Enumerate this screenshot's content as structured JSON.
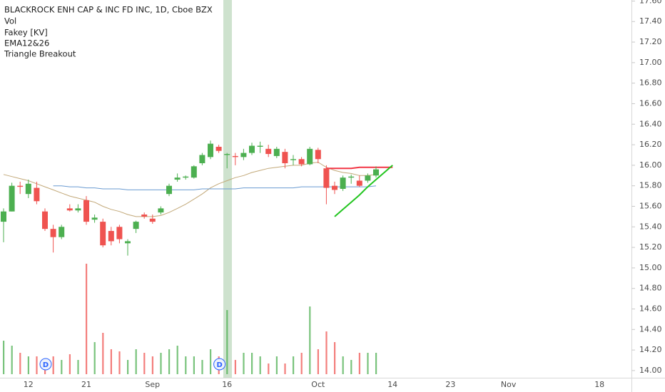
{
  "chart_data": {
    "type": "candlestick",
    "title": "BLACKROCK ENH CAP & INC FD INC, 1D, Cboe BZX",
    "indicators": [
      "Vol",
      "Fakey [KV]",
      "EMA12&26",
      "Triangle Breakout"
    ],
    "categories": [
      null,
      null,
      null,
      "12",
      null,
      null,
      null,
      null,
      null,
      null,
      "21",
      null,
      null,
      null,
      null,
      null,
      null,
      null,
      "Sep",
      null,
      null,
      null,
      null,
      null,
      null,
      null,
      null,
      "16",
      null,
      null,
      null,
      null,
      null,
      null,
      null,
      null,
      null,
      null,
      "Oct",
      null,
      null,
      null,
      null,
      null,
      null,
      null,
      null,
      "14",
      null,
      null,
      null,
      null,
      null,
      null,
      "23",
      null,
      null,
      null,
      null,
      null,
      null,
      "Nov",
      null,
      null,
      null,
      null,
      null,
      null,
      null,
      null,
      null,
      null,
      "18",
      null,
      null
    ],
    "open": [
      15.45,
      15.55,
      15.8,
      15.72,
      15.78,
      15.55,
      15.38,
      15.3,
      15.58,
      15.56,
      15.66,
      15.47,
      15.45,
      15.36,
      15.4,
      15.24,
      15.38,
      15.52,
      15.48,
      15.54,
      15.72,
      15.86,
      15.88,
      15.88,
      16.02,
      16.08,
      16.18,
      16.1,
      16.09,
      16.08,
      16.12,
      16.18,
      16.16,
      16.09,
      16.13,
      16.05,
      16.06,
      16.01,
      16.15,
      15.97,
      15.8,
      15.77,
      15.88,
      15.85,
      15.85,
      15.9,
      null,
      null,
      null,
      null,
      null,
      null,
      null,
      null,
      null,
      null,
      null,
      null,
      null,
      null,
      null,
      null,
      null,
      null,
      null,
      null,
      null,
      null,
      null,
      null,
      null,
      null,
      null,
      null,
      null
    ],
    "high": [
      15.58,
      15.83,
      15.84,
      15.86,
      15.84,
      15.58,
      15.42,
      15.42,
      15.62,
      15.62,
      15.7,
      15.52,
      15.48,
      15.4,
      15.42,
      15.28,
      15.46,
      15.54,
      15.52,
      15.6,
      15.82,
      15.92,
      15.9,
      16.0,
      16.12,
      16.24,
      16.2,
      16.12,
      16.12,
      16.16,
      16.22,
      16.23,
      16.2,
      16.18,
      16.16,
      16.1,
      16.08,
      16.18,
      16.17,
      16.0,
      15.84,
      15.9,
      15.91,
      15.9,
      15.92,
      15.99,
      null,
      null,
      null,
      null,
      null,
      null,
      null,
      null,
      null,
      null,
      null,
      null,
      null,
      null,
      null,
      null,
      null,
      null,
      null,
      null,
      null,
      null,
      null,
      null,
      null,
      null,
      null,
      null,
      null
    ],
    "low": [
      15.25,
      15.55,
      15.72,
      15.68,
      15.62,
      15.36,
      15.15,
      15.28,
      15.55,
      15.54,
      15.42,
      15.44,
      15.2,
      15.22,
      15.24,
      15.12,
      15.34,
      15.48,
      15.43,
      15.52,
      15.7,
      15.84,
      15.86,
      15.87,
      16.0,
      16.06,
      16.12,
      15.97,
      16.0,
      16.05,
      16.1,
      16.12,
      16.08,
      16.07,
      15.97,
      16.0,
      15.99,
      16.0,
      16.02,
      15.62,
      15.72,
      15.75,
      15.82,
      15.79,
      15.83,
      15.88,
      null,
      null,
      null,
      null,
      null,
      null,
      null,
      null,
      null,
      null,
      null,
      null,
      null,
      null,
      null,
      null,
      null,
      null,
      null,
      null,
      null,
      null,
      null,
      null,
      null,
      null,
      null,
      null,
      null
    ],
    "close": [
      15.55,
      15.8,
      15.79,
      15.82,
      15.65,
      15.38,
      15.3,
      15.4,
      15.56,
      15.58,
      15.45,
      15.49,
      15.22,
      15.26,
      15.28,
      15.26,
      15.45,
      15.5,
      15.45,
      15.58,
      15.8,
      15.88,
      15.89,
      15.99,
      16.1,
      16.21,
      16.14,
      16.11,
      16.08,
      16.12,
      16.19,
      16.19,
      16.11,
      16.16,
      16.02,
      16.06,
      16.01,
      16.16,
      16.06,
      15.78,
      15.76,
      15.88,
      15.89,
      15.8,
      15.9,
      15.96,
      null,
      null,
      null,
      null,
      null,
      null,
      null,
      null,
      null,
      null,
      null,
      null,
      null,
      null,
      null,
      null,
      null,
      null,
      null,
      null,
      null,
      null,
      null,
      null,
      null,
      null,
      null,
      null,
      null
    ],
    "volume": [
      47000,
      40000,
      30000,
      25000,
      25000,
      15000,
      25000,
      20000,
      28000,
      20000,
      155000,
      45000,
      58000,
      35000,
      32000,
      20000,
      35000,
      30000,
      25000,
      30000,
      35000,
      40000,
      25000,
      25000,
      20000,
      35000,
      25000,
      90000,
      20000,
      30000,
      30000,
      25000,
      15000,
      25000,
      15000,
      25000,
      30000,
      95000,
      35000,
      60000,
      45000,
      25000,
      20000,
      30000,
      30000,
      30000,
      null,
      null,
      null,
      null,
      null,
      null,
      null,
      null,
      null,
      null,
      null,
      null,
      null,
      null,
      null,
      null,
      null,
      null,
      null,
      null,
      null,
      null,
      null,
      null,
      null,
      null,
      null,
      null,
      null
    ],
    "up_color": "#4caf50",
    "down_color": "#ef5350",
    "lines": [
      {
        "color": "#c2a878",
        "values": [
          15.91,
          15.89,
          15.87,
          15.85,
          15.82,
          15.79,
          15.76,
          15.73,
          15.7,
          15.68,
          15.66,
          15.64,
          15.6,
          15.57,
          15.55,
          15.52,
          15.5,
          15.5,
          15.5,
          15.51,
          15.54,
          15.58,
          15.62,
          15.67,
          15.72,
          15.78,
          15.82,
          15.85,
          15.88,
          15.9,
          15.93,
          15.95,
          15.97,
          15.98,
          15.99,
          16.0,
          16.0,
          16.02,
          16.03,
          15.98,
          15.95,
          15.93,
          15.92,
          15.9,
          15.9,
          15.91,
          null,
          null,
          null,
          null,
          null,
          null,
          null,
          null,
          null,
          null,
          null,
          null,
          null,
          null,
          null,
          null,
          null,
          null,
          null,
          null,
          null,
          null,
          null,
          null,
          null,
          null,
          null,
          null,
          null
        ]
      },
      {
        "color": "#6a9bd1",
        "values": [
          null,
          null,
          null,
          null,
          null,
          null,
          15.8,
          15.8,
          15.79,
          15.79,
          15.78,
          15.78,
          15.77,
          15.77,
          15.77,
          15.76,
          15.76,
          15.76,
          15.76,
          15.76,
          15.76,
          15.76,
          15.76,
          15.76,
          15.77,
          15.77,
          15.77,
          15.77,
          15.77,
          15.78,
          15.78,
          15.78,
          15.78,
          15.78,
          15.78,
          15.78,
          15.79,
          15.79,
          15.79,
          15.79,
          15.79,
          15.79,
          15.79,
          15.79,
          15.79,
          15.8,
          null,
          null,
          null,
          null,
          null,
          null,
          null,
          null,
          null,
          null,
          null,
          null,
          null,
          null,
          null,
          null,
          null,
          null,
          null,
          null,
          null,
          null,
          null,
          null,
          null,
          null,
          null,
          null,
          null
        ]
      },
      {
        "color": "#f23645",
        "values": [
          null,
          null,
          null,
          null,
          null,
          null,
          null,
          null,
          null,
          null,
          null,
          null,
          null,
          null,
          null,
          null,
          null,
          null,
          null,
          null,
          null,
          null,
          null,
          null,
          null,
          null,
          null,
          null,
          null,
          null,
          null,
          null,
          null,
          null,
          null,
          null,
          null,
          null,
          null,
          15.97,
          15.97,
          15.97,
          15.97,
          15.98,
          15.98,
          15.98,
          15.98,
          15.98,
          null,
          null,
          null,
          null,
          null,
          null,
          null,
          null,
          null,
          null,
          null,
          null,
          null,
          null,
          null,
          null,
          null,
          null,
          null,
          null,
          null,
          null,
          null,
          null,
          null,
          null,
          null
        ]
      },
      {
        "color": "#22c51f",
        "values": [
          null,
          null,
          null,
          null,
          null,
          null,
          null,
          null,
          null,
          null,
          null,
          null,
          null,
          null,
          null,
          null,
          null,
          null,
          null,
          null,
          null,
          null,
          null,
          null,
          null,
          null,
          null,
          null,
          null,
          null,
          null,
          null,
          null,
          null,
          null,
          null,
          null,
          null,
          null,
          null,
          15.5,
          15.57,
          15.64,
          15.71,
          15.79,
          15.86,
          15.93,
          16.0,
          null,
          null,
          null,
          null,
          null,
          null,
          null,
          null,
          null,
          null,
          null,
          null,
          null,
          null,
          null,
          null,
          null,
          null,
          null,
          null,
          null,
          null,
          null,
          null,
          null,
          null,
          null
        ]
      }
    ],
    "dividends": [
      null,
      null,
      null,
      null,
      null,
      "D",
      null,
      null,
      null,
      null,
      null,
      null,
      null,
      null,
      null,
      null,
      null,
      null,
      null,
      null,
      null,
      null,
      null,
      null,
      null,
      null,
      "D",
      null,
      null,
      null,
      null,
      null,
      null,
      null,
      null,
      null,
      null,
      null,
      null,
      null,
      null,
      null,
      null,
      null,
      null,
      null,
      null,
      null,
      null,
      null,
      null,
      null,
      null,
      null,
      null,
      null,
      null,
      null,
      null,
      null,
      null,
      null,
      null,
      null,
      null,
      null,
      null,
      null,
      null,
      null,
      null,
      null,
      null,
      null,
      null
    ],
    "ylim": [
      13.93,
      17.61
    ],
    "yticks": [
      {
        "value": 14,
        "label": "14.00"
      },
      {
        "value": 14.2,
        "label": "14.20"
      },
      {
        "value": 14.4,
        "label": "14.40"
      },
      {
        "value": 14.6,
        "label": "14.60"
      },
      {
        "value": 14.8,
        "label": "14.80"
      },
      {
        "value": 15,
        "label": "15.00"
      },
      {
        "value": 15.2,
        "label": "15.20"
      },
      {
        "value": 15.4,
        "label": "15.40"
      },
      {
        "value": 15.6,
        "label": "15.60"
      },
      {
        "value": 15.8,
        "label": "15.80"
      },
      {
        "value": 16,
        "label": "16.00"
      },
      {
        "value": 16.2,
        "label": "16.20"
      },
      {
        "value": 16.4,
        "label": "16.40"
      },
      {
        "value": 16.6,
        "label": "16.60"
      },
      {
        "value": 16.8,
        "label": "16.80"
      },
      {
        "value": 17,
        "label": "17.00"
      },
      {
        "value": 17.2,
        "label": "17.20"
      },
      {
        "value": 17.4,
        "label": "17.40"
      },
      {
        "value": 17.6,
        "label": "17.60"
      }
    ],
    "grid": false
  }
}
